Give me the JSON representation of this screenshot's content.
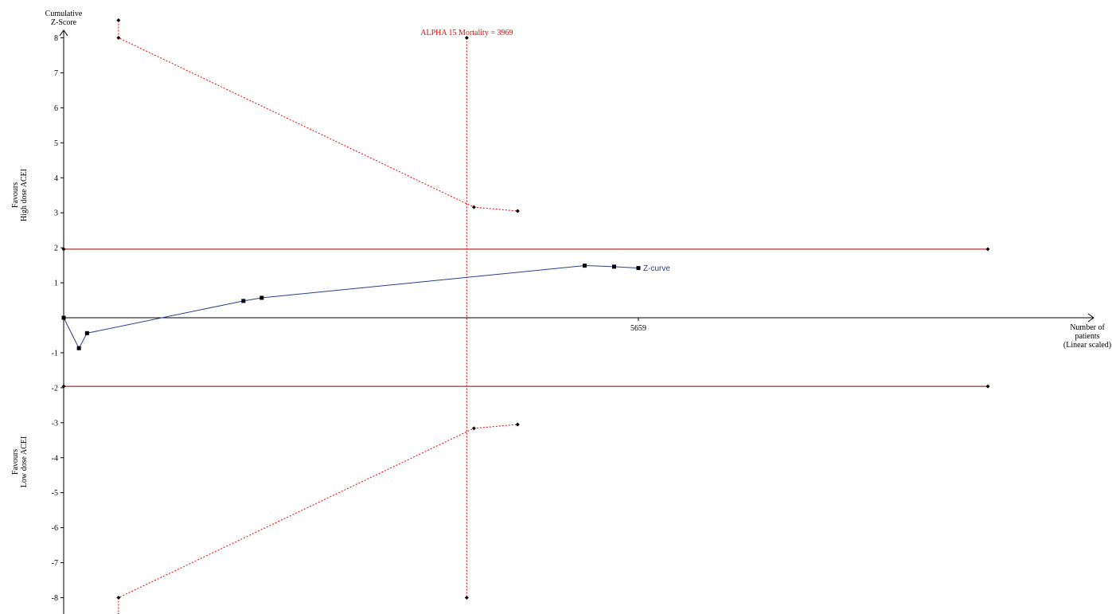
{
  "chart_data": {
    "type": "line",
    "x_axis": {
      "title_lines": [
        "Number of",
        "patients",
        "(Linear scaled)"
      ],
      "tick_value": 5659,
      "tick_label": "5659",
      "xlim": [
        0,
        9100
      ]
    },
    "y_axis": {
      "title_lines": [
        "Cumulative",
        "Z-Score"
      ],
      "ticks": [
        8,
        7,
        6,
        5,
        4,
        3,
        2,
        1,
        -1,
        -2,
        -3,
        -4,
        -5,
        -6,
        -7,
        -8
      ],
      "tick_labels": [
        "8",
        "7",
        "6",
        "5",
        "4",
        "3",
        "2",
        "1",
        "-1",
        "-2",
        "-3",
        "-4",
        "-5",
        "-6",
        "-7",
        "-8"
      ],
      "ylim": [
        -8.5,
        8.5
      ]
    },
    "favours_top": [
      "Favours",
      "High dose ACEI"
    ],
    "favours_bottom": [
      "Favours",
      "Low dose ACEI"
    ],
    "conventional_boundaries": {
      "values": [
        1.96,
        -1.96
      ],
      "x_range": [
        0,
        9100
      ],
      "color": "#8b0000"
    },
    "required_information_size": {
      "label": "ALPHA 15 Mortality = 3969",
      "x": 3969,
      "y_range": [
        -8,
        8
      ],
      "color": "#ff0000"
    },
    "monitoring_boundary_upper": {
      "color": "#ff0000",
      "points": [
        {
          "x": 540,
          "y": 8.5
        },
        {
          "x": 540,
          "y": 8.0
        },
        {
          "x": 4040,
          "y": 3.16
        },
        {
          "x": 4470,
          "y": 3.05
        }
      ]
    },
    "monitoring_boundary_lower": {
      "color": "#ff0000",
      "points": [
        {
          "x": 540,
          "y": -8.5
        },
        {
          "x": 540,
          "y": -8.0
        },
        {
          "x": 4040,
          "y": -3.16
        },
        {
          "x": 4470,
          "y": -3.05
        }
      ]
    },
    "z_curve": {
      "name": "Z-curve",
      "color": "#2f3b8f",
      "points": [
        {
          "x": 0,
          "y": 0.0
        },
        {
          "x": 150,
          "y": -0.87
        },
        {
          "x": 230,
          "y": -0.44
        },
        {
          "x": 1770,
          "y": 0.48
        },
        {
          "x": 1950,
          "y": 0.57
        },
        {
          "x": 5130,
          "y": 1.49
        },
        {
          "x": 5420,
          "y": 1.46
        },
        {
          "x": 5659,
          "y": 1.42
        }
      ]
    }
  }
}
